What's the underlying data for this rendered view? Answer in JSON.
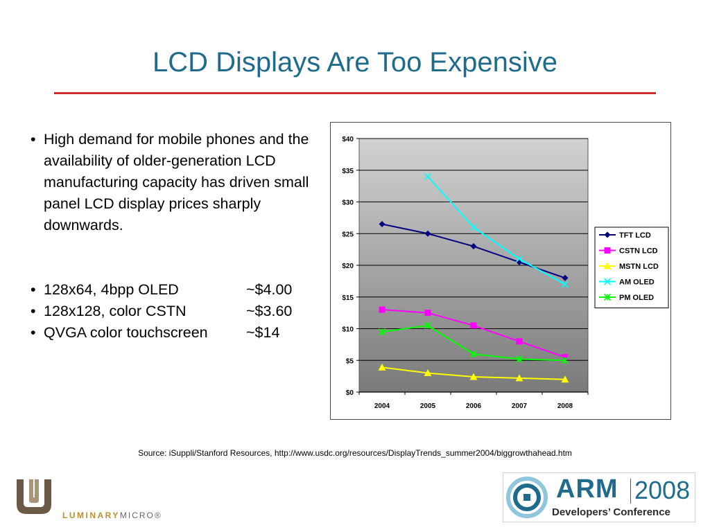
{
  "slide": {
    "title": "LCD Displays Are Too Expensive",
    "bullets": [
      "High demand for mobile phones and the availability of older-generation LCD manufacturing capacity has driven small panel LCD display prices sharply downwards."
    ],
    "prices": [
      {
        "label": "128x64, 4bpp OLED",
        "price": "~$4.00"
      },
      {
        "label": "128x128, color CSTN",
        "price": "~$3.60"
      },
      {
        "label": "QVGA color touchscreen",
        "price": "~$14"
      }
    ],
    "bullet_char": "•",
    "source": "Source: iSuppli/Stanford Resources, http://www.usdc.org/resources/DisplayTrends_summer2004/biggrowthahead.htm"
  },
  "logos": {
    "left_brand": "LUMINARY",
    "left_brand_suffix": "MICRO",
    "left_brand_mark": "®",
    "right_brand": "ARM",
    "right_year": "2008",
    "right_tagline": "Developers’ Conference"
  },
  "chart_data": {
    "type": "line",
    "x": [
      "2004",
      "2005",
      "2006",
      "2007",
      "2008"
    ],
    "ylim": [
      0,
      40
    ],
    "yticks": [
      0,
      5,
      10,
      15,
      20,
      25,
      30,
      35,
      40
    ],
    "ytick_labels": [
      "$0",
      "$5",
      "$10",
      "$15",
      "$20",
      "$25",
      "$30",
      "$35",
      "$40"
    ],
    "grid": true,
    "plot_background": "gray gradient",
    "legend_position": "right",
    "series": [
      {
        "name": "TFT LCD",
        "color": "#000080",
        "marker": "diamond",
        "values": [
          26.5,
          25,
          23,
          20.5,
          18
        ]
      },
      {
        "name": "CSTN LCD",
        "color": "#ff00ff",
        "marker": "square",
        "values": [
          13,
          12.5,
          10.5,
          8,
          5.5
        ]
      },
      {
        "name": "MSTN LCD",
        "color": "#ffff00",
        "marker": "triangle",
        "values": [
          3.9,
          3,
          2.4,
          2.2,
          2
        ]
      },
      {
        "name": "AM OLED",
        "color": "#00ffff",
        "marker": "x",
        "values": [
          null,
          34,
          26,
          21,
          17
        ]
      },
      {
        "name": "PM OLED",
        "color": "#00ff00",
        "marker": "star",
        "values": [
          9.5,
          10.5,
          6,
          5.2,
          5
        ]
      }
    ]
  }
}
